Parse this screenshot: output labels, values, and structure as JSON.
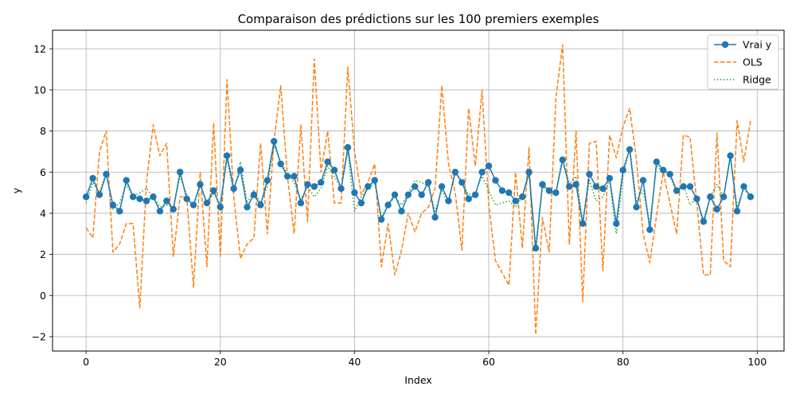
{
  "chart_data": {
    "type": "line",
    "title": "Comparaison des prédictions sur les 100 premiers exemples",
    "xlabel": "Index",
    "ylabel": "y",
    "xlim": [
      -5,
      104
    ],
    "ylim": [
      -2.7,
      12.9
    ],
    "xticks": [
      0,
      20,
      40,
      60,
      80,
      100
    ],
    "yticks": [
      -2,
      0,
      2,
      4,
      6,
      8,
      10,
      12
    ],
    "grid": true,
    "legend_position": "top-right",
    "series": [
      {
        "name": "Vrai y",
        "color": "#1f77b4",
        "style": "solid-markers",
        "values": [
          4.8,
          5.7,
          4.9,
          5.9,
          4.4,
          4.1,
          5.6,
          4.8,
          4.7,
          4.6,
          4.8,
          4.1,
          4.6,
          4.2,
          6.0,
          4.7,
          4.4,
          5.4,
          4.5,
          5.1,
          4.3,
          6.8,
          5.2,
          6.1,
          4.3,
          4.9,
          4.4,
          5.6,
          7.5,
          6.4,
          5.8,
          5.8,
          4.5,
          5.4,
          5.3,
          5.5,
          6.5,
          6.1,
          5.2,
          7.2,
          5.0,
          4.5,
          5.3,
          5.6,
          3.7,
          4.4,
          4.9,
          4.1,
          4.9,
          5.3,
          4.9,
          5.5,
          3.8,
          5.3,
          4.6,
          6.0,
          5.5,
          4.7,
          4.9,
          6.0,
          6.3,
          5.6,
          5.1,
          5.0,
          4.6,
          4.8,
          6.0,
          2.3,
          5.4,
          5.1,
          5.0,
          6.6,
          5.3,
          5.4,
          3.5,
          5.9,
          5.3,
          5.2,
          5.7,
          3.5,
          6.1,
          7.1,
          4.3,
          5.6,
          3.2,
          6.5,
          6.1,
          5.9,
          5.1,
          5.3,
          5.3,
          4.7,
          3.6,
          4.8,
          4.2,
          4.8,
          6.8,
          4.1,
          5.3,
          4.8
        ]
      },
      {
        "name": "OLS",
        "color": "#ff7f0e",
        "style": "dashed",
        "values": [
          3.3,
          2.8,
          7.0,
          8.0,
          2.1,
          2.5,
          3.5,
          3.5,
          -0.6,
          5.5,
          8.3,
          6.8,
          7.4,
          1.9,
          4.8,
          4.8,
          0.4,
          6.0,
          1.4,
          8.4,
          1.9,
          10.5,
          4.8,
          1.8,
          2.5,
          2.8,
          7.4,
          3.0,
          7.5,
          10.2,
          5.8,
          3.0,
          8.3,
          3.6,
          11.5,
          6.0,
          8.0,
          4.5,
          4.5,
          11.1,
          7.0,
          4.9,
          5.5,
          6.4,
          1.4,
          3.5,
          1.0,
          2.2,
          4.0,
          3.1,
          4.0,
          4.3,
          5.2,
          10.2,
          6.4,
          5.0,
          2.2,
          9.1,
          6.3,
          10.0,
          4.4,
          1.7,
          1.1,
          0.5,
          6.0,
          2.3,
          7.2,
          -1.9,
          3.8,
          2.1,
          9.6,
          12.2,
          2.5,
          8.0,
          -0.3,
          7.4,
          7.5,
          1.2,
          7.8,
          6.7,
          8.2,
          9.1,
          6.6,
          3.0,
          1.6,
          3.9,
          6.0,
          4.5,
          3.0,
          7.8,
          7.7,
          4.5,
          1.0,
          1.0,
          7.9,
          1.7,
          1.4,
          8.5,
          6.5,
          8.5
        ]
      },
      {
        "name": "Ridge",
        "color": "#2ca02c",
        "style": "dotted",
        "values": [
          4.5,
          5.5,
          5.0,
          6.0,
          4.2,
          4.5,
          5.4,
          4.8,
          5.0,
          5.2,
          4.8,
          4.3,
          4.4,
          4.3,
          5.8,
          4.9,
          4.3,
          5.5,
          4.4,
          5.0,
          4.4,
          6.6,
          5.0,
          6.5,
          4.5,
          5.1,
          4.5,
          5.3,
          7.3,
          6.5,
          5.9,
          5.5,
          4.7,
          5.3,
          4.8,
          5.2,
          6.3,
          5.8,
          5.2,
          7.0,
          4.1,
          4.8,
          5.2,
          5.5,
          3.8,
          4.4,
          4.8,
          4.4,
          5.0,
          5.6,
          5.5,
          5.3,
          4.1,
          5.1,
          4.5,
          6.1,
          5.5,
          4.9,
          5.0,
          5.8,
          5.1,
          4.4,
          4.5,
          4.6,
          4.3,
          4.8,
          5.9,
          2.1,
          5.3,
          5.0,
          5.0,
          6.7,
          5.4,
          5.8,
          3.6,
          5.6,
          4.6,
          4.8,
          5.6,
          3.0,
          5.8,
          7.2,
          4.6,
          5.1,
          3.5,
          6.3,
          6.0,
          5.8,
          5.0,
          5.4,
          4.4,
          4.8,
          3.4,
          4.8,
          5.4,
          4.8,
          6.7,
          4.3,
          5.2,
          4.8
        ]
      }
    ]
  }
}
